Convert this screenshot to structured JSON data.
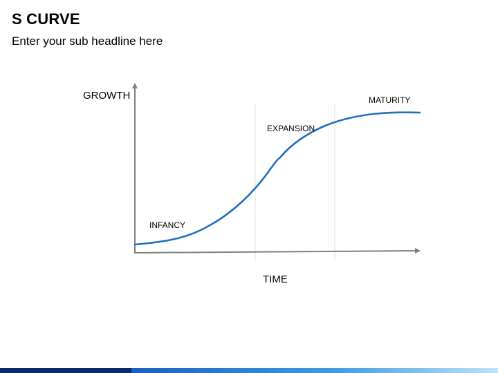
{
  "slide": {
    "title": "S CURVE",
    "subtitle": "Enter your sub headline here"
  },
  "diagram": {
    "y_axis_label": "GROWTH",
    "x_axis_label": "TIME",
    "stages": [
      {
        "label": "INFANCY"
      },
      {
        "label": "EXPANSION"
      },
      {
        "label": "MATURITY"
      }
    ]
  },
  "colors": {
    "curve": "#1f6fbd",
    "axis": "#7f7f7f",
    "divider": "#e3e3e3",
    "bottom_bar_dark": "#0b2a6b",
    "bottom_bar_light": "#3f9be0"
  }
}
